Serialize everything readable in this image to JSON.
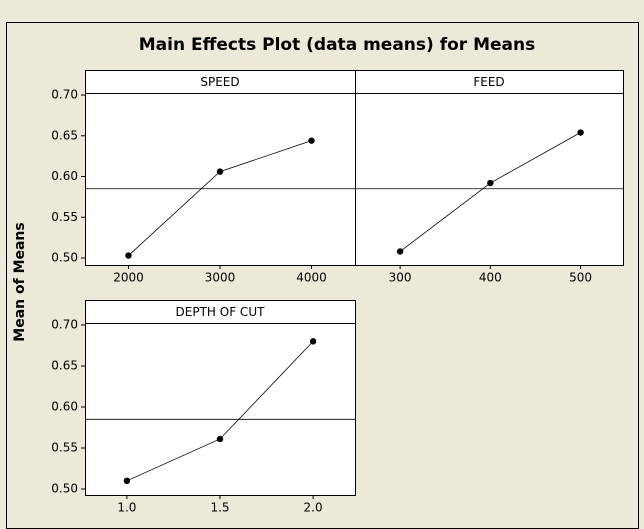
{
  "title": "Main Effects Plot (data means) for Means",
  "y_label": "Mean of Means",
  "chart_data": [
    {
      "type": "line",
      "title": "SPEED",
      "x": [
        2000,
        3000,
        4000
      ],
      "values": [
        0.503,
        0.606,
        0.644
      ],
      "color": "#000000",
      "xlim": [
        1525,
        4475
      ],
      "xticks": [
        2000,
        3000,
        4000
      ],
      "ylim": [
        0.4914,
        0.7025
      ],
      "yticks": [
        {
          "value": 0.5,
          "label": "0.50"
        },
        0.55,
        {
          "value": 0.6,
          "label": "0.60"
        },
        0.65,
        {
          "value": 0.7,
          "label": "0.70"
        }
      ],
      "reference_line": 0.585
    },
    {
      "type": "line",
      "title": "FEED",
      "x": [
        300,
        400,
        500
      ],
      "values": [
        0.508,
        0.592,
        0.654
      ],
      "color": "#000000",
      "xlim": [
        250,
        547
      ],
      "xticks": [
        300,
        400,
        500
      ],
      "ylim": [
        0.4914,
        0.7025
      ],
      "reference_line": 0.585
    },
    {
      "type": "line",
      "title": "DEPTH OF CUT",
      "x": [
        1.0,
        1.5,
        2.0
      ],
      "values": [
        0.51,
        0.561,
        0.68
      ],
      "color": "#000000",
      "xlim": [
        0.775,
        2.225
      ],
      "xticks": [
        {
          "value": 1.0,
          "label": "1.0"
        },
        {
          "value": 1.5,
          "label": "1.5"
        },
        {
          "value": 2.0,
          "label": "2.0"
        }
      ],
      "ylim": [
        0.4927,
        0.7024
      ],
      "yticks": [
        {
          "value": 0.5,
          "label": "0.50"
        },
        0.55,
        {
          "value": 0.6,
          "label": "0.60"
        },
        0.65,
        {
          "value": 0.7,
          "label": "0.70"
        }
      ],
      "reference_line": 0.585
    }
  ]
}
